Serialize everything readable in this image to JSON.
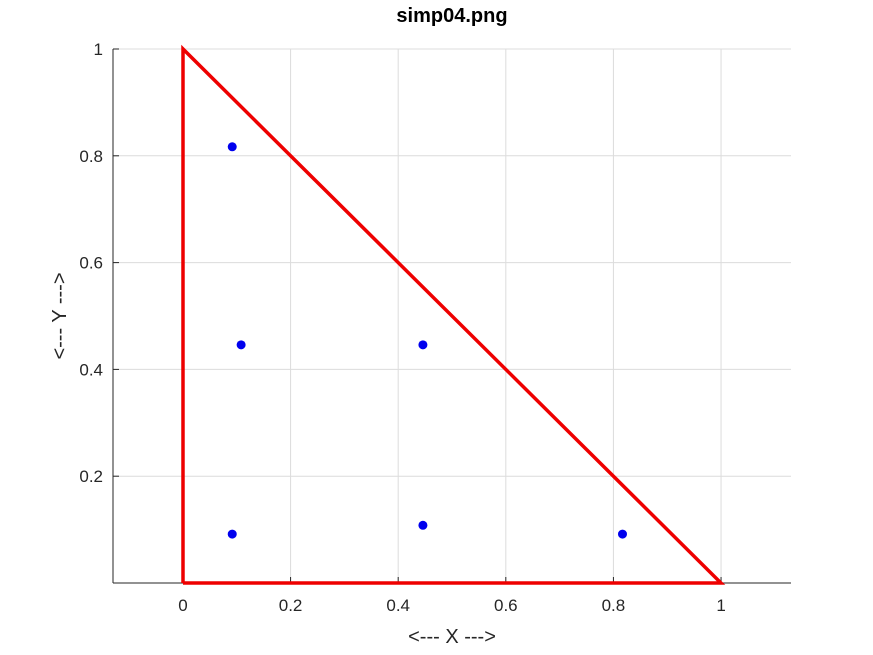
{
  "chart_data": {
    "type": "scatter",
    "title": "simp04.png",
    "xlabel": "<--- X --->",
    "ylabel": "<--- Y --->",
    "xlim": [
      -0.13,
      1.13
    ],
    "ylim": [
      0,
      1
    ],
    "xticks": [
      0,
      0.2,
      0.4,
      0.6,
      0.8,
      1
    ],
    "xtick_labels": [
      "0",
      "0.2",
      "0.4",
      "0.6",
      "0.8",
      "1"
    ],
    "yticks": [
      0.2,
      0.4,
      0.6,
      0.8,
      1
    ],
    "ytick_labels": [
      "0.2",
      "0.4",
      "0.6",
      "0.8",
      "1"
    ],
    "grid": true,
    "colors": {
      "triangle": "#ee0000",
      "points": "#0000ee"
    },
    "triangle": {
      "x": [
        0,
        1,
        0,
        0
      ],
      "y": [
        0,
        0,
        1,
        0
      ]
    },
    "points": {
      "x": [
        0.0915762,
        0.108103,
        0.445948,
        0.445948,
        0.816848,
        0.0915762
      ],
      "y": [
        0.816848,
        0.445948,
        0.445948,
        0.108103,
        0.0915762,
        0.0915762
      ]
    }
  }
}
